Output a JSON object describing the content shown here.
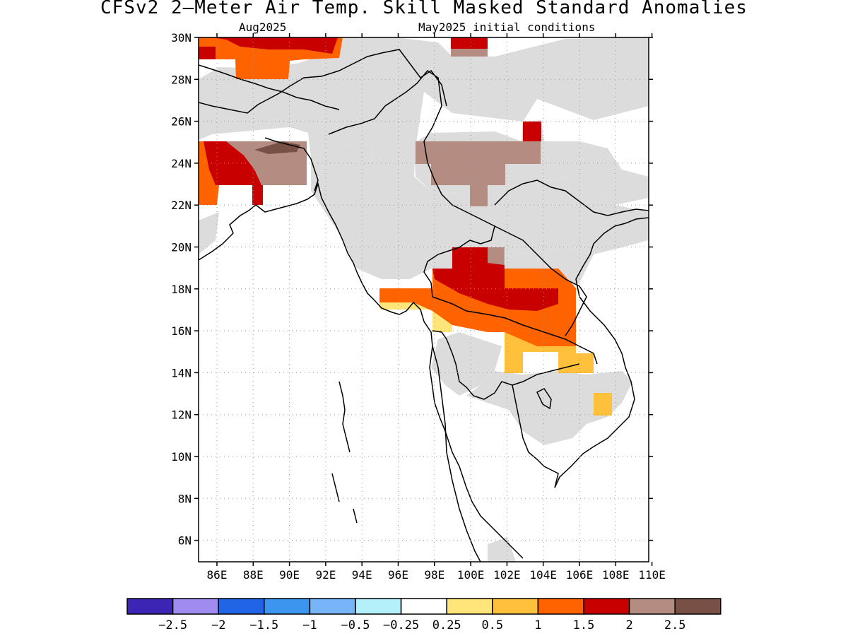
{
  "title": "CFSv2 2—Meter Air Temp. Skill Masked Standard Anomalies",
  "subtitle_left": "Aug2025",
  "subtitle_right": "May2025 initial conditions",
  "lat_ticks": [
    "30N",
    "28N",
    "26N",
    "24N",
    "22N",
    "20N",
    "18N",
    "16N",
    "14N",
    "12N",
    "10N",
    "8N",
    "6N"
  ],
  "lon_ticks": [
    "86E",
    "88E",
    "90E",
    "92E",
    "94E",
    "96E",
    "98E",
    "100E",
    "102E",
    "104E",
    "106E",
    "108E",
    "110E"
  ],
  "colors": {
    "masked": "#dcdcdc",
    "c_025": "#ffe57a",
    "c_05": "#ffc03c",
    "c_1": "#ff6300",
    "c_15": "#c80000",
    "c_2": "#b48c82",
    "c_25": "#785046"
  },
  "colorbar": {
    "colors": [
      "#3c24b4",
      "#a08cf0",
      "#2264e6",
      "#3c96f0",
      "#78b4fa",
      "#b4f0fa",
      "#ffffff",
      "#ffe57a",
      "#ffc03c",
      "#ff6300",
      "#c80000",
      "#b48c82",
      "#785046"
    ],
    "labels": [
      "−2.5",
      "−2",
      "−1.5",
      "−1",
      "−0.5",
      "−0.25",
      "0.25",
      "0.5",
      "1",
      "1.5",
      "2",
      "2.5"
    ]
  }
}
